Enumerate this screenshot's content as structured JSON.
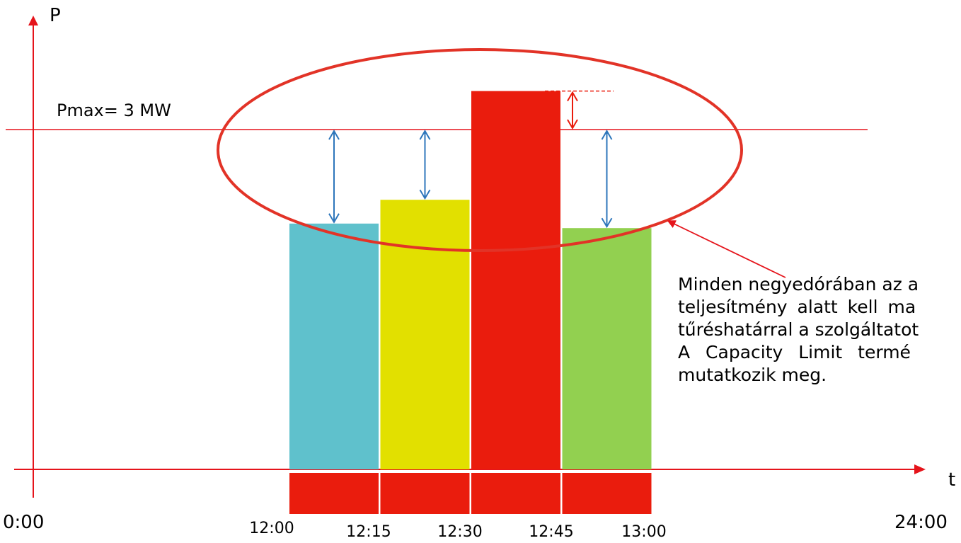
{
  "axis": {
    "y_label": "P",
    "x_label": "t",
    "x_start_label": "0:00",
    "x_end_label": "24:00"
  },
  "pmax": {
    "label": "Pmax= 3 MW",
    "value_mw": 3
  },
  "time_ticks": [
    "12:00",
    "12:15",
    "12:30",
    "12:45",
    "13:00"
  ],
  "chart_data": {
    "type": "bar",
    "categories": [
      "12:00-12:15",
      "12:15-12:30",
      "12:30-12:45",
      "12:45-13:00"
    ],
    "values": [
      2.17,
      2.38,
      3.34,
      2.13
    ],
    "colors": [
      "#5fc1cc",
      "#e2e000",
      "#ea1c0d",
      "#92d050"
    ],
    "title": "",
    "xlabel": "t",
    "ylabel": "P",
    "threshold": 3,
    "ylim": [
      0,
      3.34
    ]
  },
  "note": {
    "lines": [
      "Minden negyedórában az a",
      "teljesítmény alatt kell ma",
      "tűréshatárral a szolgáltatot",
      "A Capacity Limit termé",
      "mutatkozik meg."
    ]
  },
  "colors": {
    "axis": "#e5141b",
    "exceed": "#ea1c0d",
    "ok_arrow": "#2d76bb",
    "ellipse": "#e23327"
  }
}
